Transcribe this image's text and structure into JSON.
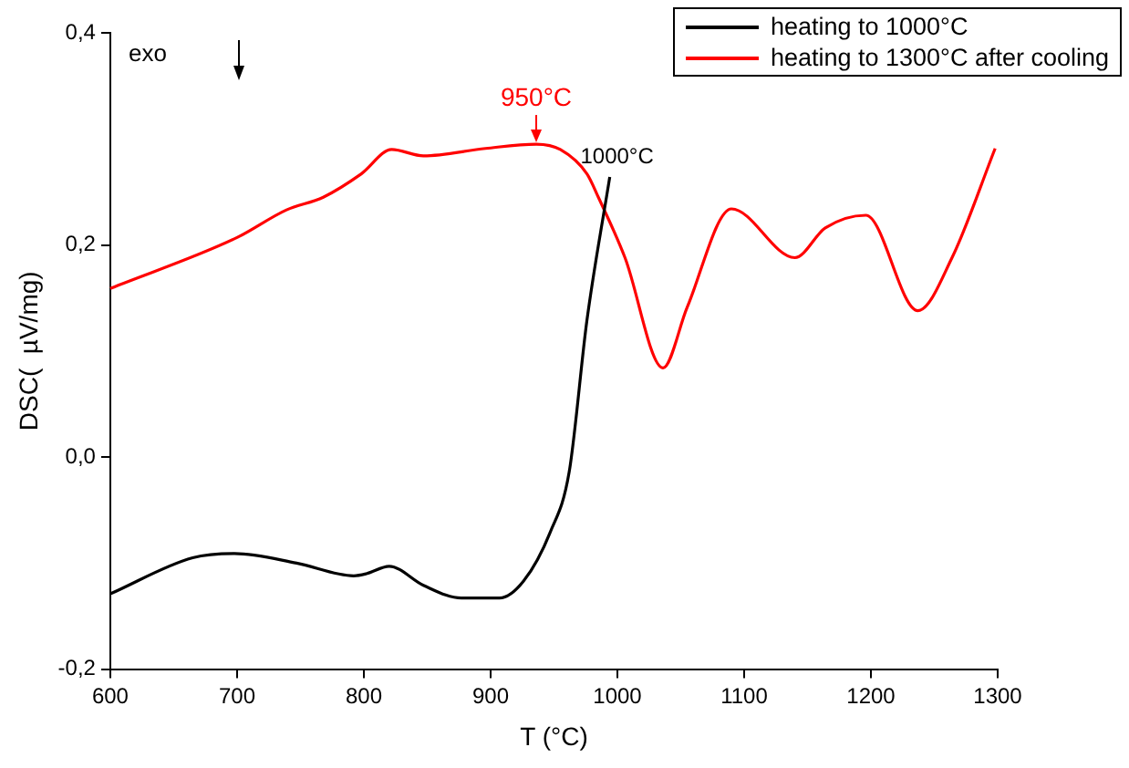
{
  "chart_data": {
    "type": "line",
    "xlabel": "T (°C)",
    "ylabel": "DSC(  µV/mg)",
    "xlim": [
      600,
      1300
    ],
    "xticks": [
      600,
      700,
      800,
      900,
      1000,
      1100,
      1200,
      1300
    ],
    "ylim": [
      -0.2,
      0.4
    ],
    "yticks": [
      {
        "value": -0.2,
        "label": "-0,2"
      },
      {
        "value": 0,
        "label": "0,0"
      },
      {
        "value": 0.2,
        "label": "0,2"
      },
      {
        "value": 0.4,
        "label": "0,4"
      }
    ],
    "legend": "top right",
    "marker": "none",
    "line_style": "solid",
    "annotations": [
      "exo",
      {
        "text": "950°C",
        "x": 936,
        "y": 0.295
      },
      {
        "text": "1000°C",
        "x": 994,
        "y": 0.264
      }
    ],
    "series": [
      {
        "name": "heating to 1000°C",
        "color": "#000000",
        "x": [
          600,
          665,
          698,
          747,
          792,
          802,
          820,
          847,
          877,
          907,
          926,
          947,
          962,
          976,
          994
        ],
        "values": [
          -0.129,
          -0.095,
          -0.091,
          -0.1,
          -0.112,
          -0.11,
          -0.103,
          -0.121,
          -0.133,
          -0.133,
          -0.117,
          -0.071,
          -0.014,
          0.129,
          0.264
        ]
      },
      {
        "name": "heating to 1300°C after cooling",
        "color": "#ff0000",
        "x": [
          600,
          700,
          739,
          768,
          798,
          822,
          847,
          896,
          936,
          955,
          976,
          985,
          1006,
          1036,
          1055,
          1090,
          1140,
          1164,
          1196,
          1237,
          1264,
          1298
        ],
        "values": [
          0.159,
          0.207,
          0.233,
          0.245,
          0.267,
          0.29,
          0.284,
          0.291,
          0.295,
          0.29,
          0.267,
          0.245,
          0.188,
          0.084,
          0.141,
          0.234,
          0.188,
          0.216,
          0.228,
          0.138,
          0.188,
          0.291
        ]
      }
    ]
  }
}
